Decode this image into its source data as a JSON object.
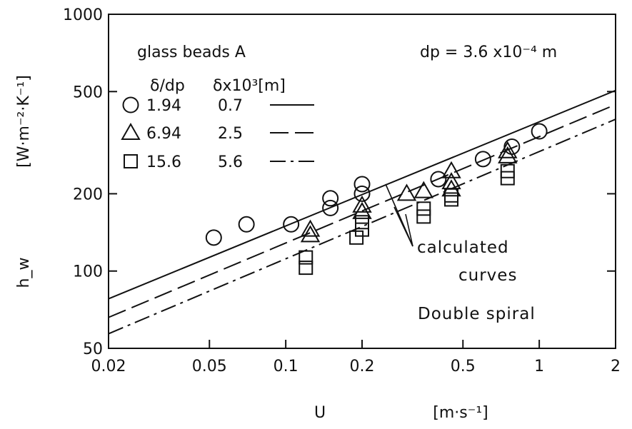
{
  "chart_data": {
    "type": "scatter",
    "xscale": "log",
    "yscale": "log",
    "xlim": [
      0.02,
      2
    ],
    "ylim": [
      50,
      1000
    ],
    "grid": false,
    "xlabel": "U",
    "xunit": "[m·s⁻¹]",
    "ylabel": "h_w",
    "yunit": "[W·m⁻²·K⁻¹]",
    "xticks": [
      {
        "v": 0.02,
        "label": "0.02"
      },
      {
        "v": 0.05,
        "label": "0.05"
      },
      {
        "v": 0.1,
        "label": "0.1"
      },
      {
        "v": 0.2,
        "label": "0.2"
      },
      {
        "v": 0.5,
        "label": "0.5"
      },
      {
        "v": 1,
        "label": "1"
      },
      {
        "v": 2,
        "label": "2"
      }
    ],
    "yticks": [
      {
        "v": 50,
        "label": "50"
      },
      {
        "v": 100,
        "label": "100"
      },
      {
        "v": 200,
        "label": "200"
      },
      {
        "v": 500,
        "label": "500"
      },
      {
        "v": 1000,
        "label": "1000"
      }
    ],
    "legend": {
      "title": "glass beads A",
      "col1_header": "δ/dp",
      "col2_header": "δx10³[m]",
      "entries": [
        {
          "marker": "circle",
          "ratio": "1.94",
          "delta": "0.7",
          "line": "solid"
        },
        {
          "marker": "triangle",
          "ratio": "6.94",
          "delta": "2.5",
          "line": "dashed"
        },
        {
          "marker": "square",
          "ratio": "15.6",
          "delta": "5.6",
          "line": "dashdot"
        }
      ]
    },
    "param_label": "dp = 3.6 x10⁻⁴ m",
    "annotations": [
      "calculated",
      "curves",
      "Double spiral"
    ],
    "lines": [
      {
        "style": "solid",
        "x": [
          0.02,
          2
        ],
        "y": [
          78,
          505
        ]
      },
      {
        "style": "dashed",
        "x": [
          0.02,
          2
        ],
        "y": [
          66,
          445
        ]
      },
      {
        "style": "dashdot",
        "x": [
          0.02,
          2
        ],
        "y": [
          57,
          390
        ]
      }
    ],
    "series": [
      {
        "marker": "circle",
        "points": [
          [
            0.052,
            135
          ],
          [
            0.07,
            152
          ],
          [
            0.105,
            152
          ],
          [
            0.15,
            176
          ],
          [
            0.15,
            192
          ],
          [
            0.2,
            200
          ],
          [
            0.2,
            218
          ],
          [
            0.4,
            228
          ],
          [
            0.6,
            273
          ],
          [
            0.78,
            305
          ],
          [
            1.0,
            350
          ]
        ]
      },
      {
        "marker": "triangle",
        "points": [
          [
            0.125,
            138
          ],
          [
            0.125,
            145
          ],
          [
            0.2,
            170
          ],
          [
            0.2,
            180
          ],
          [
            0.3,
            200
          ],
          [
            0.35,
            205
          ],
          [
            0.45,
            208
          ],
          [
            0.45,
            222
          ],
          [
            0.45,
            245
          ],
          [
            0.75,
            280
          ],
          [
            0.75,
            293
          ]
        ]
      },
      {
        "marker": "square",
        "points": [
          [
            0.12,
            103
          ],
          [
            0.12,
            113
          ],
          [
            0.19,
            135
          ],
          [
            0.2,
            145
          ],
          [
            0.2,
            155
          ],
          [
            0.35,
            163
          ],
          [
            0.35,
            175
          ],
          [
            0.45,
            190
          ],
          [
            0.45,
            197
          ],
          [
            0.75,
            230
          ],
          [
            0.75,
            245
          ]
        ]
      }
    ]
  }
}
